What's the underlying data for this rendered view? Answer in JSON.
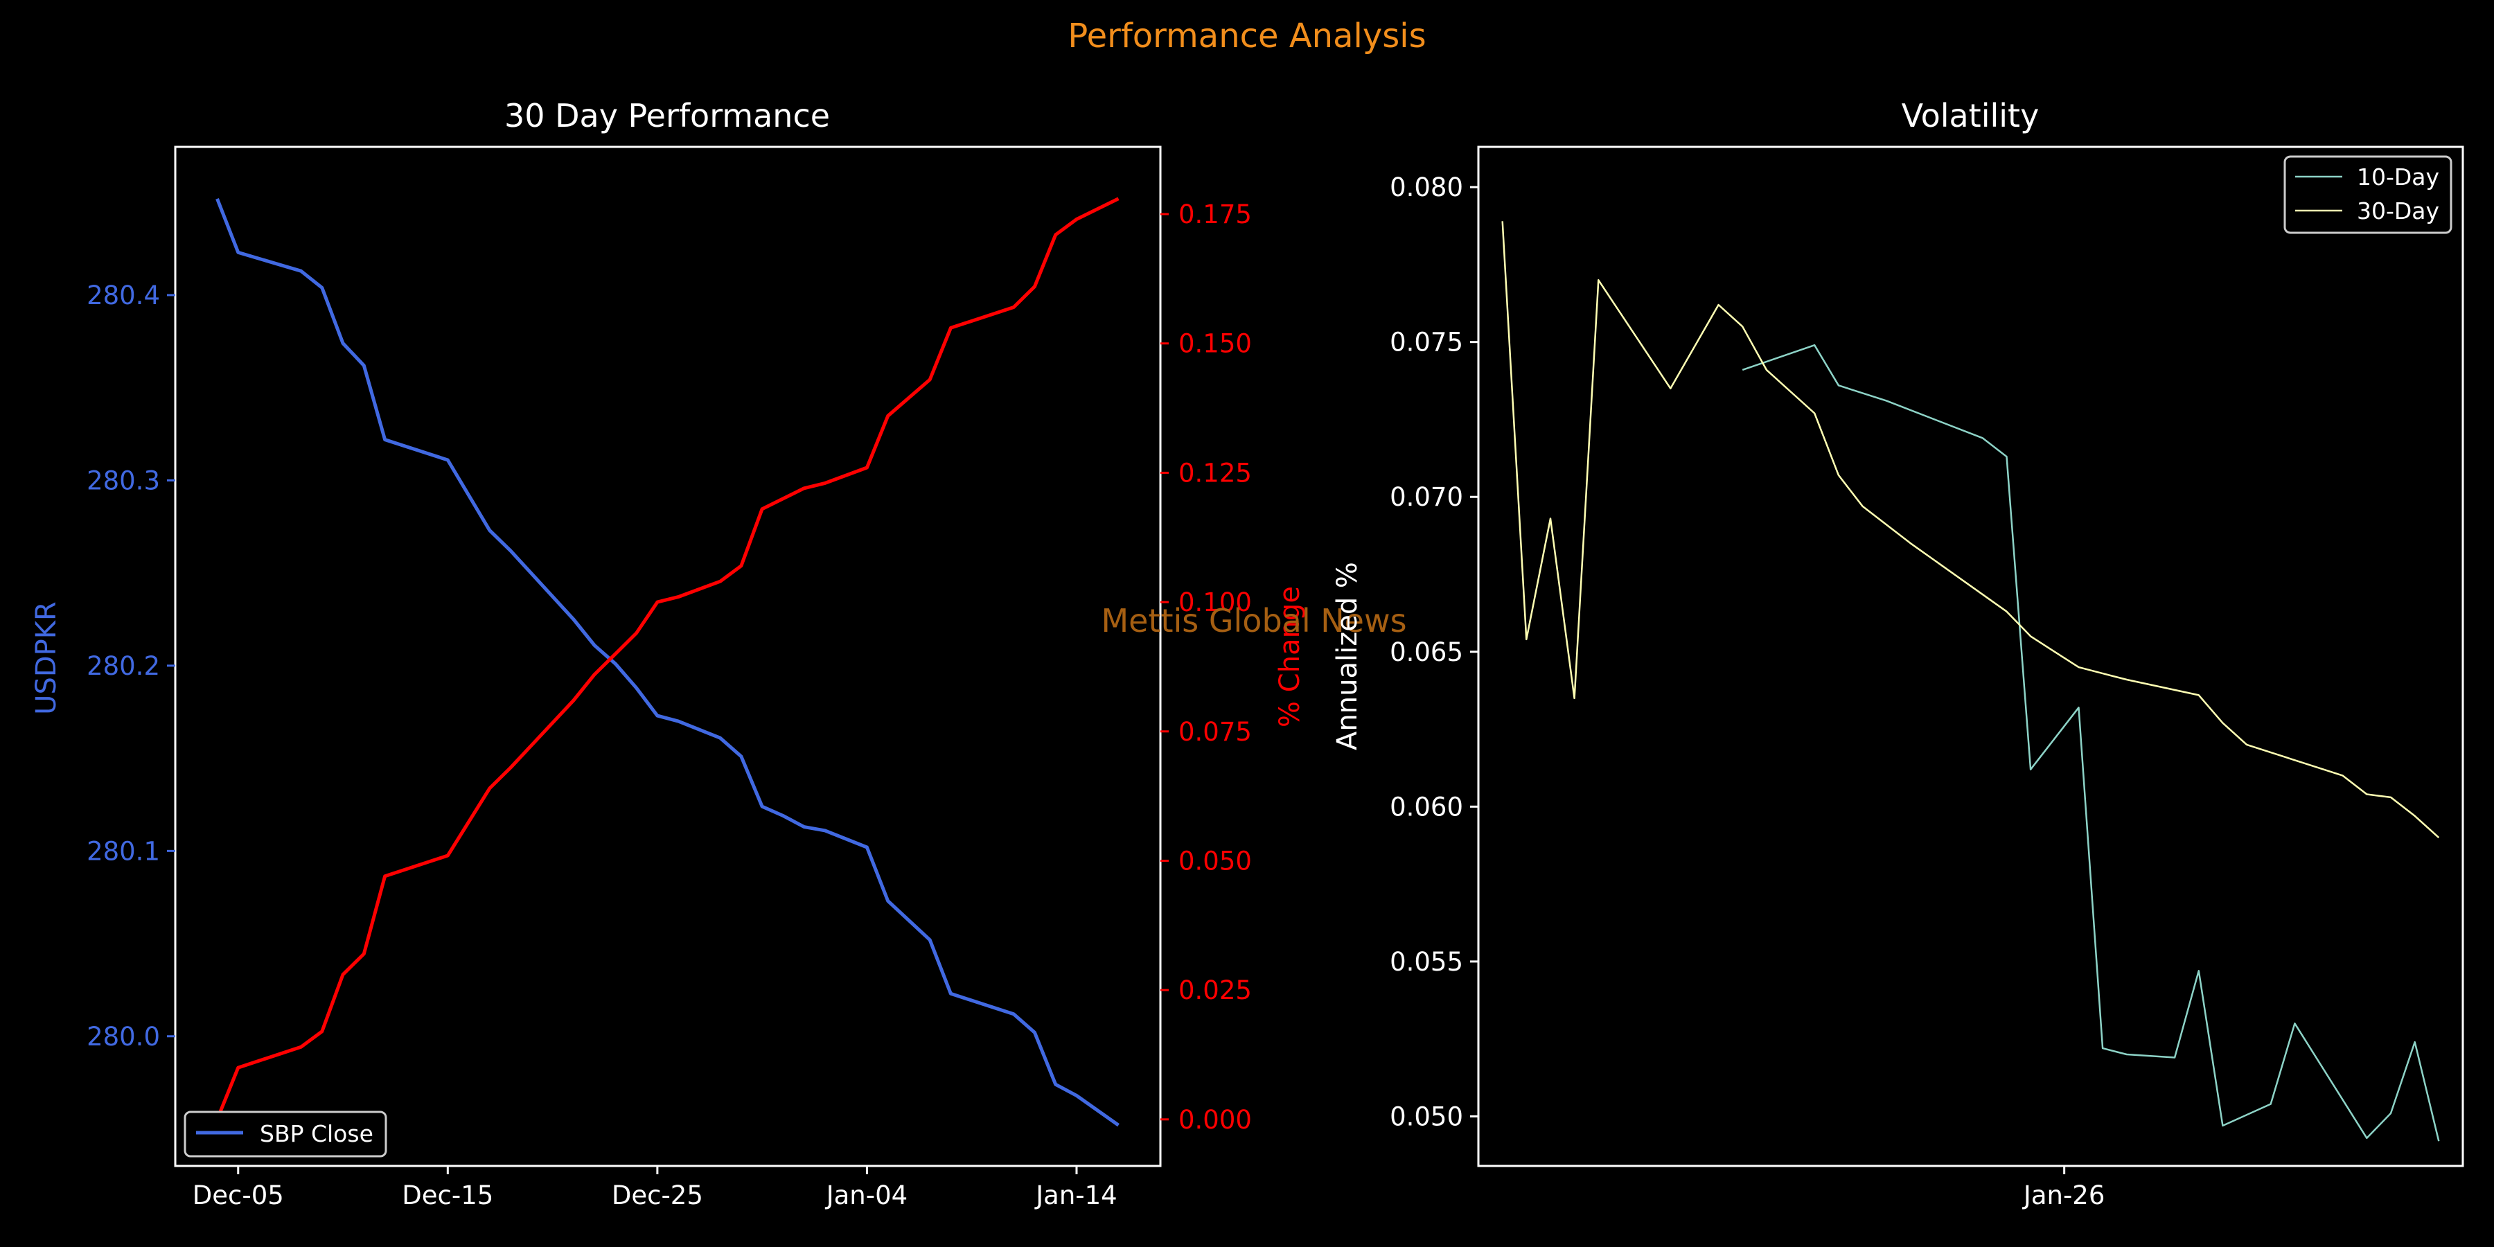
{
  "figure": {
    "suptitle": "Performance Analysis",
    "watermark": "Mettis Global News",
    "colors": {
      "background": "#000000",
      "foreground": "#ffffff",
      "suptitle": "#f28e1c",
      "watermark": "#a65f12",
      "close_line": "#4169e1",
      "pct_line": "#ff0000",
      "vol10": "#8dd3c7",
      "vol30": "#ffffb3"
    }
  },
  "chart_data": [
    {
      "type": "line",
      "title": "30 Day Performance",
      "ylabel": "USDPKR",
      "y2label": "% Change",
      "xlabel": "",
      "x_ticks": [
        "Dec-05",
        "Dec-15",
        "Dec-25",
        "Jan-04",
        "Jan-14"
      ],
      "x_tick_dates": [
        "2023-12-05",
        "2023-12-15",
        "2023-12-25",
        "2024-01-04",
        "2024-01-14"
      ],
      "xlim": [
        "2023-12-02",
        "2024-01-18"
      ],
      "ylim": [
        279.93,
        280.48
      ],
      "y_ticks": [
        "280.0",
        "280.1",
        "280.2",
        "280.3",
        "280.4"
      ],
      "y2lim": [
        -0.009,
        0.188
      ],
      "y2_ticks": [
        "0.000",
        "0.025",
        "0.050",
        "0.075",
        "0.100",
        "0.125",
        "0.150",
        "0.175"
      ],
      "legend": {
        "position": "lower-left",
        "entries": [
          "SBP Close"
        ]
      },
      "grid": false,
      "x": [
        "2023-12-04",
        "2023-12-05",
        "2023-12-08",
        "2023-12-09",
        "2023-12-10",
        "2023-12-11",
        "2023-12-12",
        "2023-12-15",
        "2023-12-17",
        "2023-12-18",
        "2023-12-21",
        "2023-12-22",
        "2023-12-23",
        "2023-12-24",
        "2023-12-25",
        "2023-12-26",
        "2023-12-28",
        "2023-12-29",
        "2023-12-30",
        "2023-12-31",
        "2024-01-01",
        "2024-01-02",
        "2024-01-04",
        "2024-01-05",
        "2024-01-07",
        "2024-01-08",
        "2024-01-11",
        "2024-01-12",
        "2024-01-13",
        "2024-01-14",
        "2024-01-16"
      ],
      "series": [
        {
          "name": "SBP Close",
          "axis": "left",
          "values": [
            280.452,
            280.423,
            280.413,
            280.404,
            280.374,
            280.362,
            280.322,
            280.311,
            280.273,
            280.262,
            280.225,
            280.211,
            280.201,
            280.188,
            280.173,
            280.17,
            280.161,
            280.151,
            280.124,
            280.119,
            280.113,
            280.111,
            280.102,
            280.073,
            280.052,
            280.023,
            280.012,
            280.002,
            279.974,
            279.968,
            279.952
          ]
        },
        {
          "axis": "right",
          "values": [
            0.0,
            0.01,
            0.014,
            0.017,
            0.028,
            0.032,
            0.047,
            0.051,
            0.064,
            0.068,
            0.081,
            0.086,
            0.09,
            0.094,
            0.1,
            0.101,
            0.104,
            0.107,
            0.118,
            0.12,
            0.122,
            0.123,
            0.126,
            0.136,
            0.143,
            0.153,
            0.157,
            0.161,
            0.171,
            0.174,
            0.178
          ]
        }
      ]
    },
    {
      "type": "line",
      "title": "Volatility",
      "ylabel": "Annualized %",
      "xlabel": "",
      "x_ticks": [
        "Jan-26"
      ],
      "x_tick_index": [
        24.4
      ],
      "xlim": [
        0,
        41
      ],
      "ylim": [
        0.0484,
        0.0813
      ],
      "y_ticks": [
        "0.050",
        "0.055",
        "0.060",
        "0.065",
        "0.070",
        "0.075",
        "0.080"
      ],
      "legend": {
        "position": "top-right",
        "entries": [
          "10-Day",
          "30-Day"
        ]
      },
      "grid": false,
      "series": [
        {
          "name": "10-Day",
          "x": [
            11,
            14,
            15,
            17,
            21,
            22,
            23,
            25,
            26,
            27,
            29,
            30,
            31,
            33,
            34,
            37,
            38,
            39,
            40
          ],
          "values": [
            0.0741,
            0.0749,
            0.0736,
            0.0731,
            0.0719,
            0.0713,
            0.0612,
            0.0632,
            0.0522,
            0.052,
            0.0519,
            0.0547,
            0.0497,
            0.0504,
            0.053,
            0.0493,
            0.0501,
            0.0524,
            0.0492
          ]
        },
        {
          "name": "30-Day",
          "x": [
            1,
            2,
            3,
            4,
            5,
            8,
            10,
            11,
            12,
            14,
            15,
            16,
            17,
            18,
            22,
            23,
            24,
            25,
            26,
            27,
            30,
            31,
            32,
            36,
            37,
            38,
            39,
            40
          ],
          "values": [
            0.0789,
            0.0654,
            0.0693,
            0.0635,
            0.077,
            0.0735,
            0.0762,
            0.0755,
            0.0741,
            0.0727,
            0.0707,
            0.0697,
            0.0691,
            0.0685,
            0.0663,
            0.0655,
            0.065,
            0.0645,
            0.0643,
            0.0641,
            0.0636,
            0.0627,
            0.062,
            0.061,
            0.0604,
            0.0603,
            0.0597,
            0.059
          ]
        }
      ]
    }
  ]
}
